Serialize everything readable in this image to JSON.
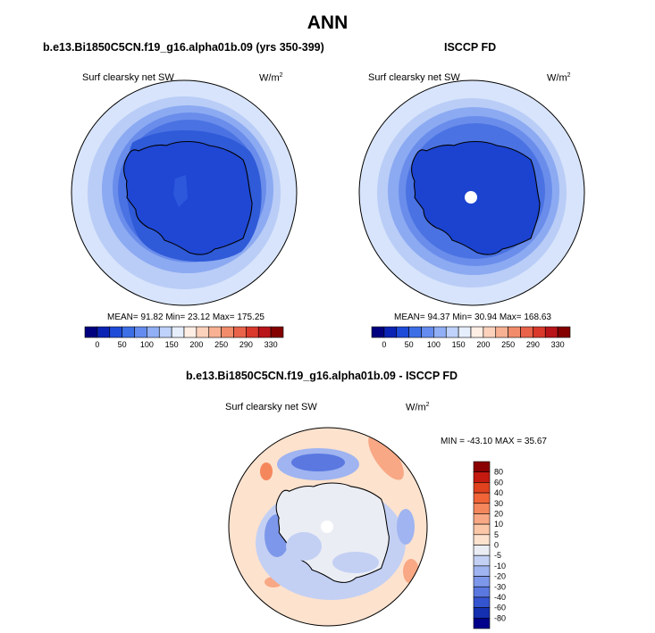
{
  "title": "ANN",
  "panels": [
    {
      "subtitle": "b.e13.Bi1850C5CN.f19_g16.alpha01b.09 (yrs 350-399)",
      "variable": "Surf clearsky net SW",
      "units": "W/m",
      "units_exp": "2",
      "stats": "MEAN= 91.82  Min= 23.12  Max= 175.25"
    },
    {
      "subtitle": "ISCCP FD",
      "variable": "Surf clearsky net SW",
      "units": "W/m",
      "units_exp": "2",
      "stats": "MEAN= 94.37  Min= 30.94  Max= 168.63"
    },
    {
      "subtitle": "b.e13.Bi1850C5CN.f19_g16.alpha01b.09 - ISCCP FD",
      "variable": "Surf clearsky net SW",
      "units": "W/m",
      "units_exp": "2",
      "stats": "MIN = -43.10 MAX =  35.67"
    }
  ],
  "abs_colorbar": {
    "labels": [
      "0",
      "50",
      "100",
      "150",
      "200",
      "250",
      "290",
      "330"
    ],
    "colors": [
      "#00007f",
      "#0a23b4",
      "#1e4bd8",
      "#3c6ee6",
      "#648cef",
      "#91aff5",
      "#bed2fa",
      "#e6eefc",
      "#ffeee4",
      "#fdd2bc",
      "#f8b192",
      "#f08c6a",
      "#e8634a",
      "#d8392a",
      "#b8141a",
      "#820000"
    ]
  },
  "diff_colorbar": {
    "labels": [
      "80",
      "60",
      "40",
      "30",
      "20",
      "10",
      "5",
      "0",
      "-5",
      "-10",
      "-20",
      "-30",
      "-40",
      "-60",
      "-80"
    ],
    "colors": [
      "#8b0000",
      "#c41a10",
      "#e0411e",
      "#f06438",
      "#f5875c",
      "#f8a884",
      "#fbc7a7",
      "#fde2ce",
      "#ebedf4",
      "#c3d0f4",
      "#9fb4f0",
      "#7d97ea",
      "#5a78e0",
      "#3554d0",
      "#1530b0",
      "#00008b"
    ]
  },
  "icons": {
    "antarctica": "antarctica-coastline",
    "missing": "missing-data-disc"
  }
}
